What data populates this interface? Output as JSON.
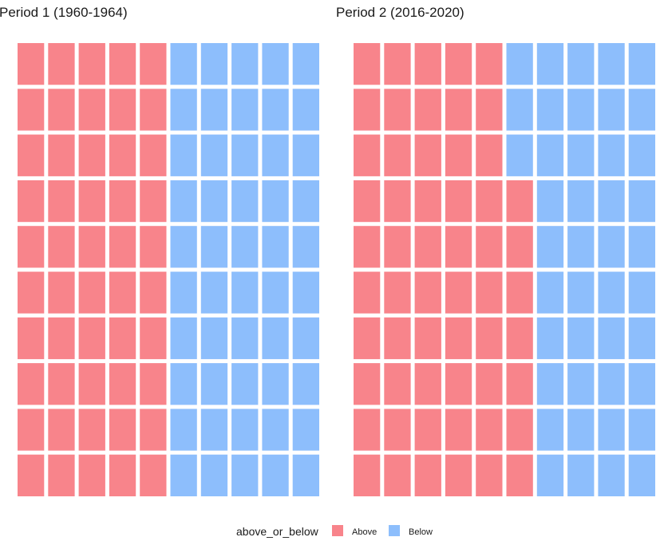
{
  "chart_data": [
    {
      "type": "waffle",
      "title": "Period 1 (1960-1964)",
      "grid": {
        "rows": 10,
        "cols": 10
      },
      "values": {
        "Above": 50,
        "Below": 50
      },
      "fill_order": "row-wise, left to right, top row first"
    },
    {
      "type": "waffle",
      "title": "Period 2 (2016-2020)",
      "grid": {
        "rows": 10,
        "cols": 10
      },
      "values": {
        "Above": 57,
        "Below": 43
      },
      "fill_order": "row-wise, left to right, top row first"
    }
  ],
  "legend": {
    "title": "above_or_below",
    "placement": "bottom",
    "items": [
      {
        "label": "Above",
        "color": "#F8848B"
      },
      {
        "label": "Below",
        "color": "#8DBEFC"
      }
    ]
  }
}
